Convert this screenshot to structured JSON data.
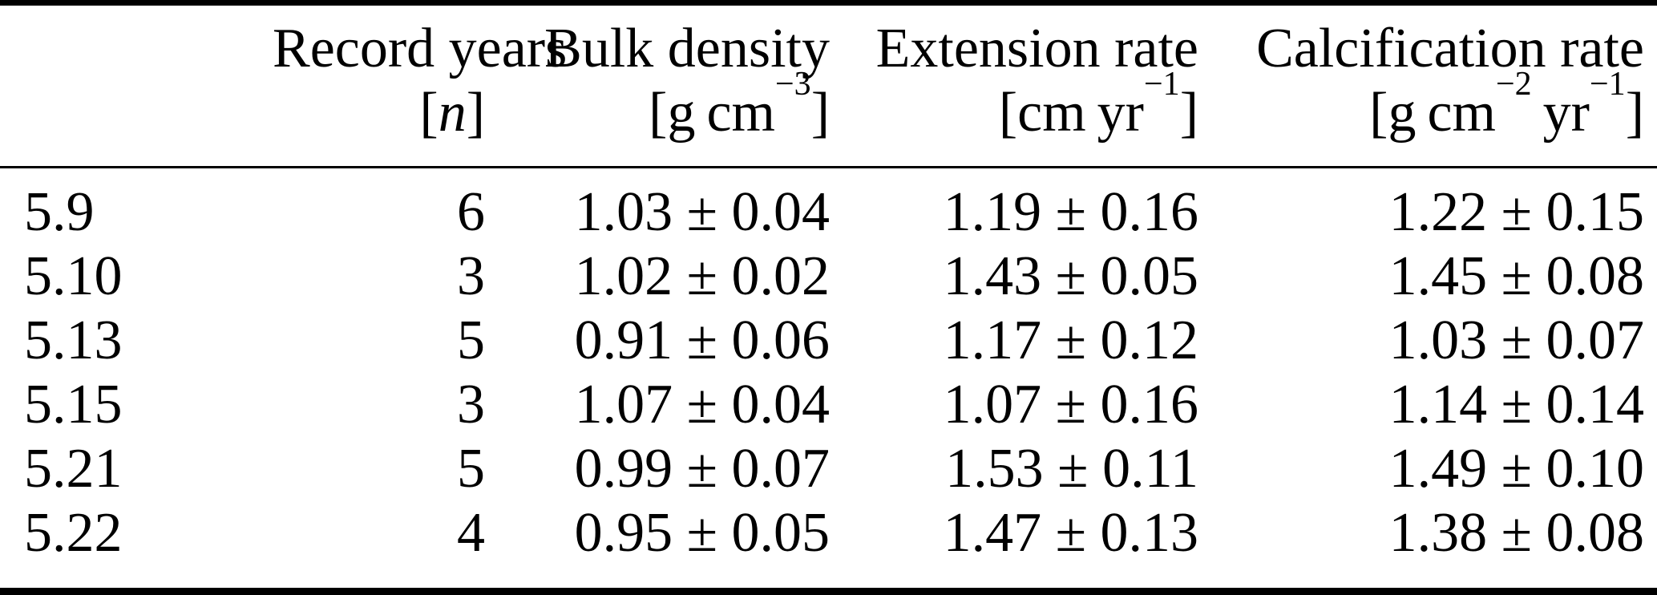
{
  "colors": {
    "background": "#ffffff",
    "text": "#000000",
    "rule": "#000000"
  },
  "table": {
    "columns": [
      {
        "title": "",
        "unit_segments": []
      },
      {
        "title": "Record years",
        "unit_segments": [
          {
            "text": "["
          },
          {
            "italic": "n"
          },
          {
            "text": "]"
          }
        ]
      },
      {
        "title": "Bulk density",
        "unit_segments": [
          {
            "text": "[g cm"
          },
          {
            "sup": "−3"
          },
          {
            "text": "]"
          }
        ]
      },
      {
        "title": "Extension rate",
        "unit_segments": [
          {
            "text": "[cm yr"
          },
          {
            "sup": "−1"
          },
          {
            "text": "]"
          }
        ]
      },
      {
        "title": "Calcification rate",
        "unit_segments": [
          {
            "text": "[g cm"
          },
          {
            "sup": "−2"
          },
          {
            "text": " yr"
          },
          {
            "sup": "−1"
          },
          {
            "text": "]"
          }
        ]
      }
    ],
    "rows": [
      {
        "cells": [
          "5.9",
          "6",
          "1.03 ± 0.04",
          "1.19 ± 0.16",
          "1.22 ± 0.15"
        ]
      },
      {
        "cells": [
          "5.10",
          "3",
          "1.02 ± 0.02",
          "1.43 ± 0.05",
          "1.45 ± 0.08"
        ]
      },
      {
        "cells": [
          "5.13",
          "5",
          "0.91 ± 0.06",
          "1.17 ± 0.12",
          "1.03 ± 0.07"
        ]
      },
      {
        "cells": [
          "5.15",
          "3",
          "1.07 ± 0.04",
          "1.07 ± 0.16",
          "1.14 ± 0.14"
        ]
      },
      {
        "cells": [
          "5.21",
          "5",
          "0.99 ± 0.07",
          "1.53 ± 0.11",
          "1.49 ± 0.10"
        ]
      },
      {
        "cells": [
          "5.22",
          "4",
          "0.95 ± 0.05",
          "1.47 ± 0.13",
          "1.38 ± 0.08"
        ]
      }
    ]
  }
}
